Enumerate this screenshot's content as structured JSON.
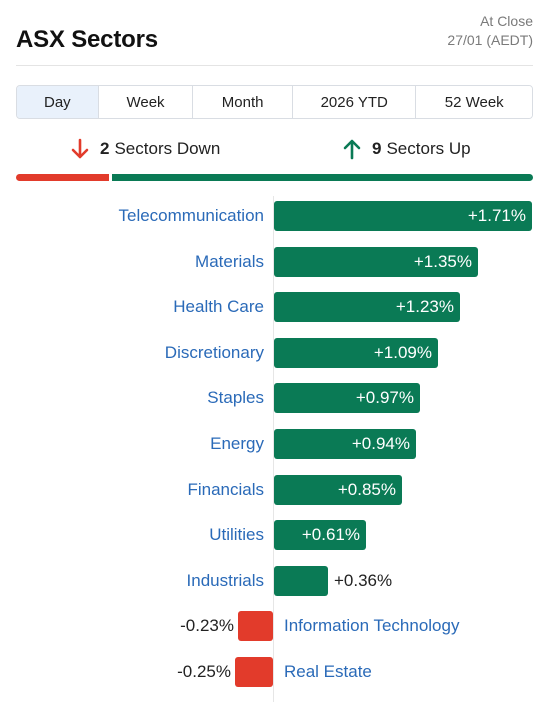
{
  "header": {
    "title": "ASX Sectors",
    "status_line1": "At Close",
    "status_line2": "27/01 (AEDT)"
  },
  "tabs": [
    {
      "label": "Day",
      "active": true
    },
    {
      "label": "Week",
      "active": false
    },
    {
      "label": "Month",
      "active": false
    },
    {
      "label": "2026 YTD",
      "active": false
    },
    {
      "label": "52 Week",
      "active": false
    }
  ],
  "summary": {
    "down_count": "2",
    "down_label": "Sectors Down",
    "up_count": "9",
    "up_label": "Sectors Up",
    "down_color": "#e23b2b",
    "up_color": "#0a7a55",
    "icons": {
      "down": "arrow-down-icon",
      "up": "arrow-up-icon"
    }
  },
  "chart_data": {
    "type": "bar",
    "orientation": "horizontal",
    "categories": [
      "Telecommunication",
      "Materials",
      "Health Care",
      "Discretionary",
      "Staples",
      "Energy",
      "Financials",
      "Utilities",
      "Industrials",
      "Information Technology",
      "Real Estate"
    ],
    "values": [
      1.71,
      1.35,
      1.23,
      1.09,
      0.97,
      0.94,
      0.85,
      0.61,
      0.36,
      -0.23,
      -0.25
    ],
    "value_labels": [
      "+1.71%",
      "+1.35%",
      "+1.23%",
      "+1.09%",
      "+0.97%",
      "+0.94%",
      "+0.85%",
      "+0.61%",
      "+0.36%",
      "-0.23%",
      "-0.25%"
    ],
    "unit": "%",
    "positive_color": "#0a7a55",
    "negative_color": "#e23b2b"
  }
}
